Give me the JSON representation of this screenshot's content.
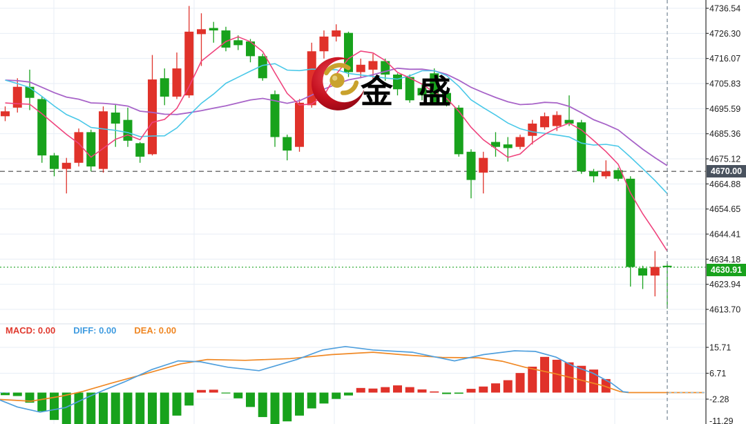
{
  "watermark": {
    "logo_text": "金 盛"
  },
  "indicator_legend": {
    "macd": "MACD: 0.00",
    "diff": "DIFF: 0.00",
    "dea": "DEA: 0.00"
  },
  "price_axis": {
    "ticks": [
      {
        "label": "4736.54",
        "value": 4736.54
      },
      {
        "label": "4726.30",
        "value": 4726.3
      },
      {
        "label": "4716.07",
        "value": 4716.07
      },
      {
        "label": "4705.83",
        "value": 4705.83
      },
      {
        "label": "4695.59",
        "value": 4695.59
      },
      {
        "label": "4685.36",
        "value": 4685.36
      },
      {
        "label": "4675.12",
        "value": 4675.12
      },
      {
        "label": "4664.88",
        "value": 4664.88
      },
      {
        "label": "4654.65",
        "value": 4654.65
      },
      {
        "label": "4644.41",
        "value": 4644.41
      },
      {
        "label": "4634.18",
        "value": 4634.18
      },
      {
        "label": "4623.94",
        "value": 4623.94
      },
      {
        "label": "4613.70",
        "value": 4613.7
      }
    ],
    "level_label": "4670.00",
    "last_price_label": "4630.91"
  },
  "macd_axis": {
    "ticks": [
      {
        "label": "15.71",
        "value": 15.71
      },
      {
        "label": "6.71",
        "value": 6.71
      },
      {
        "label": "-2.28",
        "value": -2.28
      },
      {
        "label": "-11.29",
        "value": -11.29
      }
    ]
  },
  "colors": {
    "up": "#e0322a",
    "down": "#18a21c",
    "ma_fast": "#ef437d",
    "ma_mid": "#49c8e8",
    "ma_slow": "#a763c8",
    "diff_line": "#4f9fdd",
    "dea_line": "#f08824",
    "grid": "#e7eef6",
    "dashed_level": "#666666",
    "dotted_last": "#18a21c",
    "vline": "#7d8b99",
    "axis_line": "#555555",
    "level_box": "#49525e",
    "last_box": "#18a21c"
  },
  "chart_data": {
    "type": "candlestick",
    "panels": [
      "price",
      "macd"
    ],
    "price_panel": {
      "ylim": [
        4613.7,
        4736.54
      ],
      "dashed_level": 4670.0,
      "last_price": 4630.91,
      "ma_windows": {
        "fast": 5,
        "mid": 11,
        "slow": 21
      },
      "ma_seed": [
        4720,
        4718,
        4716,
        4714,
        4712,
        4710,
        4706,
        4701,
        4696,
        4692
      ],
      "candles_ochl": [
        [
          4692.5,
          4694.5,
          4696.5,
          4690.5
        ],
        [
          4696,
          4704.5,
          4708,
          4694
        ],
        [
          4704.5,
          4700,
          4711.5,
          4695
        ],
        [
          4699.5,
          4676.5,
          4700.5,
          4673.5
        ],
        [
          4676.5,
          4671,
          4677.5,
          4668
        ],
        [
          4671,
          4673.5,
          4675.5,
          4661
        ],
        [
          4673.5,
          4686,
          4687.5,
          4672
        ],
        [
          4686,
          4672,
          4687,
          4670
        ],
        [
          4671,
          4694.5,
          4696.5,
          4669.5
        ],
        [
          4694,
          4689.5,
          4697.5,
          4680
        ],
        [
          4691,
          4682.5,
          4696,
          4680
        ],
        [
          4681.5,
          4676,
          4682,
          4673.5
        ],
        [
          4677,
          4707.5,
          4717.5,
          4676.5
        ],
        [
          4708,
          4700.5,
          4712,
          4697
        ],
        [
          4700.5,
          4712,
          4718.5,
          4699.5
        ],
        [
          4701,
          4727,
          4737.5,
          4700
        ],
        [
          4726,
          4728,
          4734.5,
          4713
        ],
        [
          4728.5,
          4727.5,
          4731,
          4722.5
        ],
        [
          4727.5,
          4720.5,
          4729,
          4719
        ],
        [
          4723.5,
          4721.5,
          4725.5,
          4719.5
        ],
        [
          4723,
          4717,
          4724,
          4714.5
        ],
        [
          4717,
          4708,
          4718,
          4707
        ],
        [
          4701.5,
          4684,
          4703,
          4680
        ],
        [
          4684,
          4678.5,
          4685,
          4674.5
        ],
        [
          4680,
          4698,
          4699.5,
          4678
        ],
        [
          4697,
          4719,
          4722.5,
          4696
        ],
        [
          4719,
          4725,
          4727.5,
          4716
        ],
        [
          4725,
          4727.5,
          4730,
          4723
        ],
        [
          4726.5,
          4710.5,
          4727,
          4708.5
        ],
        [
          4710.5,
          4713.5,
          4716,
          4708
        ],
        [
          4711.5,
          4715,
          4718,
          4706
        ],
        [
          4715,
          4709.5,
          4716,
          4707
        ],
        [
          4709.5,
          4703.5,
          4710,
          4701
        ],
        [
          4708.5,
          4699,
          4709.5,
          4698
        ],
        [
          4704,
          4701,
          4706,
          4699
        ],
        [
          4710,
          4698,
          4712,
          4697
        ],
        [
          4702,
          4697.5,
          4703,
          4696.5
        ],
        [
          4696,
          4677,
          4697,
          4676
        ],
        [
          4678,
          4666.5,
          4679,
          4659
        ],
        [
          4669.5,
          4675.5,
          4678,
          4661
        ],
        [
          4682,
          4680,
          4686,
          4676
        ],
        [
          4681,
          4679.5,
          4684,
          4674
        ],
        [
          4680,
          4684,
          4685,
          4679
        ],
        [
          4684.5,
          4689.5,
          4691,
          4681
        ],
        [
          4688,
          4692.5,
          4694,
          4687
        ],
        [
          4688.5,
          4693,
          4694.5,
          4686.5
        ],
        [
          4691,
          4689.5,
          4701,
          4688.5
        ],
        [
          4690,
          4670,
          4691,
          4669
        ],
        [
          4670,
          4668,
          4671,
          4665.5
        ],
        [
          4668,
          4670,
          4674.5,
          4667
        ],
        [
          4670.5,
          4667,
          4671.5,
          4666
        ],
        [
          4667,
          4631,
          4668,
          4623
        ],
        [
          4630.5,
          4627.5,
          4631.5,
          4622
        ],
        [
          4627.5,
          4631,
          4637.5,
          4619
        ],
        [
          4631.5,
          4630.91,
          4632.5,
          4614
        ]
      ]
    },
    "macd_panel": {
      "ylim": [
        -11.29,
        15.71
      ],
      "current": {
        "macd": 0.0,
        "diff": 0.0,
        "dea": 0.0
      },
      "histogram": [
        -0.9,
        -1.2,
        -3.5,
        -6.5,
        -9.5,
        -12.5,
        -11.5,
        -12.5,
        -13,
        -12.5,
        -13.2,
        -13.8,
        -13.2,
        -11.5,
        -8,
        -4.5,
        0.9,
        1.0,
        -0.3,
        -2.0,
        -5.0,
        -8.5,
        -11.0,
        -10.0,
        -8.0,
        -5.5,
        -3.8,
        -2.2,
        -1.0,
        1.6,
        1.4,
        1.9,
        2.5,
        1.9,
        1.1,
        0.4,
        -0.5,
        -0.4,
        1.3,
        2.1,
        3.2,
        4.3,
        6.8,
        9.0,
        12.4,
        11.4,
        10.5,
        9.3,
        8.0,
        4.7,
        0,
        0,
        0,
        0,
        0
      ],
      "diff_points": [
        [
          0,
          -2.6
        ],
        [
          25,
          -5.0
        ],
        [
          58,
          -6.8
        ],
        [
          95,
          -5.2
        ],
        [
          125,
          -1.8
        ],
        [
          150,
          0.8
        ],
        [
          180,
          3.7
        ],
        [
          220,
          8.0
        ],
        [
          258,
          11.0
        ],
        [
          290,
          10.7
        ],
        [
          330,
          8.8
        ],
        [
          375,
          7.6
        ],
        [
          430,
          11.5
        ],
        [
          467,
          14.8
        ],
        [
          500,
          16.0
        ],
        [
          540,
          14.8
        ],
        [
          597,
          14.0
        ],
        [
          658,
          11.0
        ],
        [
          700,
          13.2
        ],
        [
          745,
          14.5
        ],
        [
          775,
          14.3
        ],
        [
          805,
          12.3
        ],
        [
          830,
          9.2
        ],
        [
          858,
          6.8
        ],
        [
          885,
          3.3
        ],
        [
          902,
          0.3
        ],
        [
          910,
          0.1
        ]
      ],
      "dea_points": [
        [
          0,
          -2.4
        ],
        [
          45,
          -3.0
        ],
        [
          90,
          -1.2
        ],
        [
          120,
          0.4
        ],
        [
          160,
          3.2
        ],
        [
          210,
          6.5
        ],
        [
          262,
          10.0
        ],
        [
          300,
          11.5
        ],
        [
          355,
          11.2
        ],
        [
          420,
          11.8
        ],
        [
          480,
          13.2
        ],
        [
          540,
          14.0
        ],
        [
          585,
          13.1
        ],
        [
          640,
          12.2
        ],
        [
          693,
          12.1
        ],
        [
          727,
          10.9
        ],
        [
          760,
          8.8
        ],
        [
          803,
          6.6
        ],
        [
          840,
          4.4
        ],
        [
          873,
          2.4
        ],
        [
          898,
          0.3
        ],
        [
          910,
          0
        ],
        [
          1020,
          0
        ]
      ]
    }
  }
}
